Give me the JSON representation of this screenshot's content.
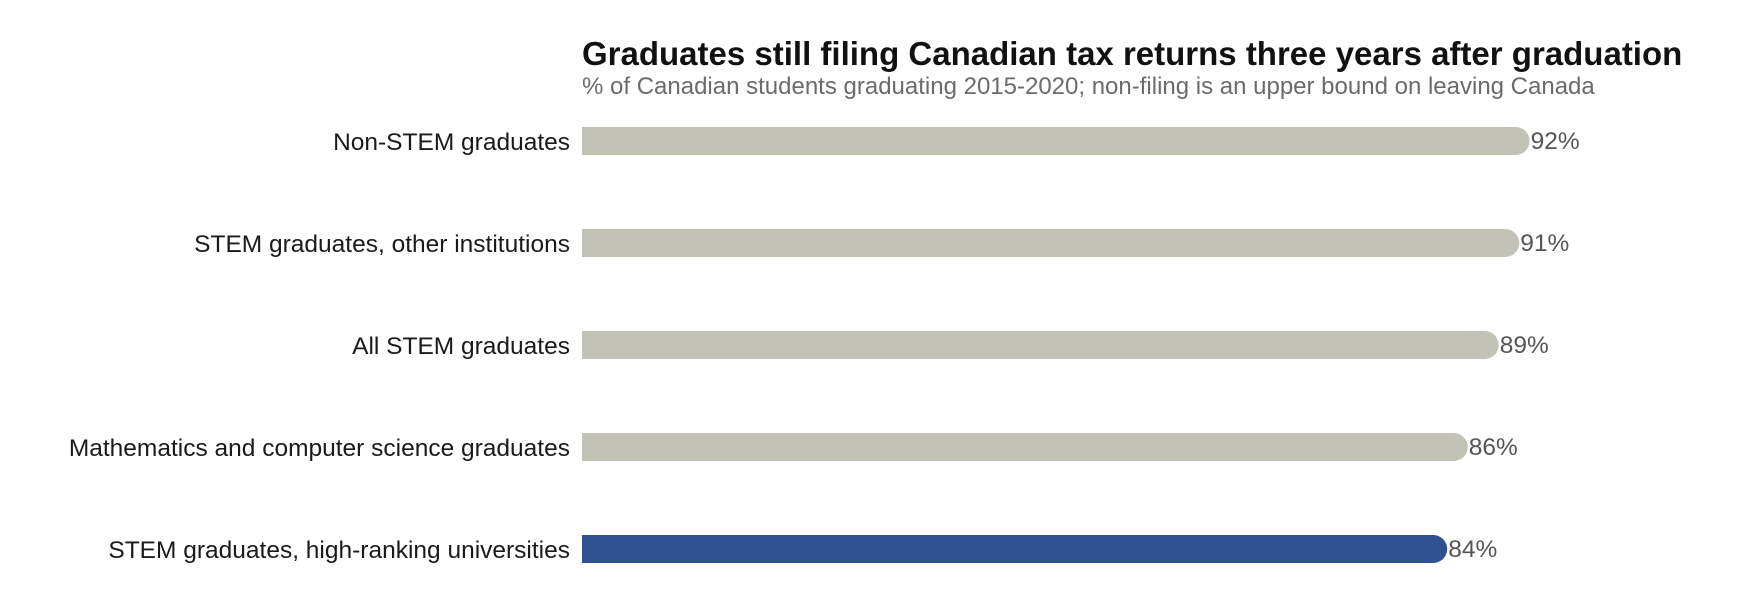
{
  "chart_data": {
    "type": "bar",
    "orientation": "horizontal",
    "title": "Graduates still filing Canadian tax returns three years after graduation",
    "subtitle": "% of Canadian students graduating 2015-2020; non-filing is an upper bound on leaving Canada",
    "categories": [
      "Non-STEM graduates",
      "STEM graduates, other institutions",
      "All STEM graduates",
      "Mathematics and computer science graduates",
      "STEM graduates, high-ranking universities"
    ],
    "values": [
      92,
      91,
      89,
      86,
      84
    ],
    "value_labels": [
      "92%",
      "91%",
      "89%",
      "86%",
      "84%"
    ],
    "highlighted": [
      false,
      false,
      false,
      false,
      true
    ],
    "xlim": [
      0,
      100
    ],
    "grid": false,
    "legend": "none",
    "colors": {
      "default_bar": "#c2c2b6",
      "highlight_bar": "#2f5191"
    }
  }
}
